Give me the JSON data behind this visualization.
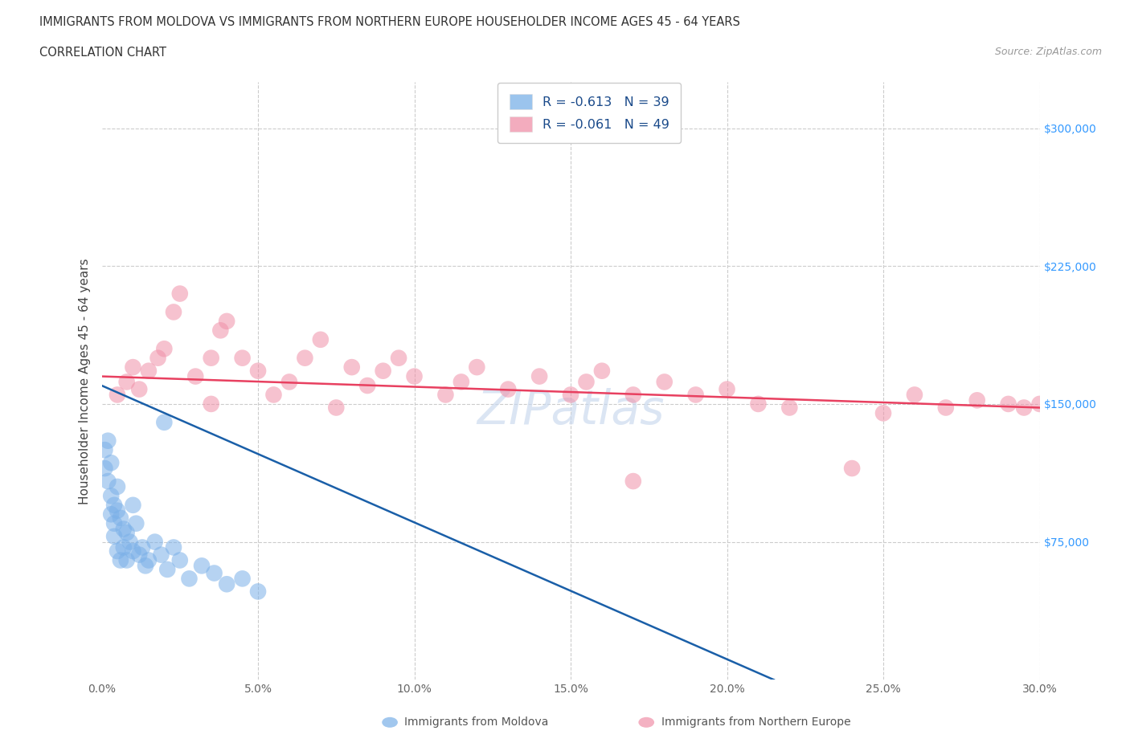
{
  "title_line1": "IMMIGRANTS FROM MOLDOVA VS IMMIGRANTS FROM NORTHERN EUROPE HOUSEHOLDER INCOME AGES 45 - 64 YEARS",
  "title_line2": "CORRELATION CHART",
  "source": "Source: ZipAtlas.com",
  "ylabel": "Householder Income Ages 45 - 64 years",
  "xlim": [
    0,
    0.3
  ],
  "ylim": [
    0,
    325000
  ],
  "xticks": [
    0.0,
    0.05,
    0.1,
    0.15,
    0.2,
    0.25,
    0.3
  ],
  "xticklabels": [
    "0.0%",
    "5.0%",
    "10.0%",
    "15.0%",
    "20.0%",
    "25.0%",
    "30.0%"
  ],
  "yticks_right": [
    75000,
    150000,
    225000,
    300000
  ],
  "yticklabels_right": [
    "$75,000",
    "$150,000",
    "$225,000",
    "$300,000"
  ],
  "legend_label_moldova": "R = -0.613   N = 39",
  "legend_label_northern": "R = -0.061   N = 49",
  "moldova_color": "#7ab0e8",
  "northern_color": "#f090a8",
  "moldova_line_color": "#1a5fa8",
  "northern_line_color": "#e84060",
  "background_color": "#ffffff",
  "moldova_trend": [
    0.0,
    160000,
    0.215,
    0
  ],
  "northern_trend": [
    0.0,
    165000,
    0.3,
    148000
  ],
  "moldova_x": [
    0.001,
    0.001,
    0.002,
    0.002,
    0.003,
    0.003,
    0.003,
    0.004,
    0.004,
    0.004,
    0.005,
    0.005,
    0.005,
    0.006,
    0.006,
    0.007,
    0.007,
    0.008,
    0.008,
    0.009,
    0.01,
    0.01,
    0.011,
    0.012,
    0.013,
    0.014,
    0.015,
    0.017,
    0.019,
    0.021,
    0.023,
    0.025,
    0.028,
    0.032,
    0.036,
    0.04,
    0.045,
    0.05,
    0.02
  ],
  "moldova_y": [
    115000,
    125000,
    108000,
    130000,
    118000,
    100000,
    90000,
    95000,
    85000,
    78000,
    105000,
    92000,
    70000,
    88000,
    65000,
    82000,
    72000,
    80000,
    65000,
    75000,
    95000,
    70000,
    85000,
    68000,
    72000,
    62000,
    65000,
    75000,
    68000,
    60000,
    72000,
    65000,
    55000,
    62000,
    58000,
    52000,
    55000,
    48000,
    140000
  ],
  "northern_x": [
    0.005,
    0.008,
    0.01,
    0.012,
    0.015,
    0.018,
    0.02,
    0.023,
    0.025,
    0.03,
    0.035,
    0.038,
    0.04,
    0.045,
    0.05,
    0.055,
    0.06,
    0.065,
    0.07,
    0.08,
    0.085,
    0.09,
    0.095,
    0.1,
    0.11,
    0.115,
    0.12,
    0.13,
    0.14,
    0.15,
    0.155,
    0.16,
    0.17,
    0.18,
    0.19,
    0.2,
    0.21,
    0.22,
    0.25,
    0.27,
    0.28,
    0.29,
    0.295,
    0.3,
    0.26,
    0.24,
    0.17,
    0.075,
    0.035
  ],
  "northern_y": [
    155000,
    162000,
    170000,
    158000,
    168000,
    175000,
    180000,
    200000,
    210000,
    165000,
    175000,
    190000,
    195000,
    175000,
    168000,
    155000,
    162000,
    175000,
    185000,
    170000,
    160000,
    168000,
    175000,
    165000,
    155000,
    162000,
    170000,
    158000,
    165000,
    155000,
    162000,
    168000,
    155000,
    162000,
    155000,
    158000,
    150000,
    148000,
    145000,
    148000,
    152000,
    150000,
    148000,
    150000,
    155000,
    115000,
    108000,
    148000,
    150000
  ]
}
